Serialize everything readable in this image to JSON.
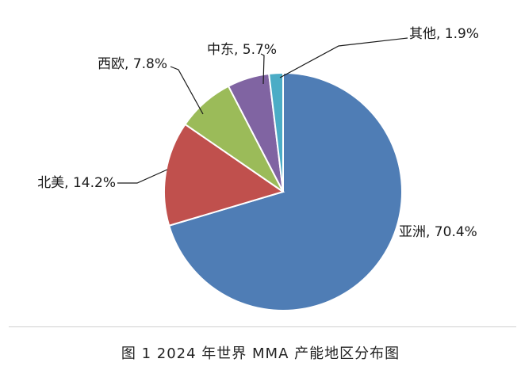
{
  "caption": "图 1  2024 年世界 MMA 产能地区分布图",
  "chart_data": {
    "type": "pie",
    "title": "",
    "slices": [
      {
        "name": "亚洲",
        "value": 70.4,
        "label": "亚洲, 70.4%",
        "color": "#4F7DB5"
      },
      {
        "name": "北美",
        "value": 14.2,
        "label": "北美, 14.2%",
        "color": "#C0504D"
      },
      {
        "name": "西欧",
        "value": 7.8,
        "label": "西欧, 7.8%",
        "color": "#9BBB59"
      },
      {
        "name": "中东",
        "value": 5.7,
        "label": "中东, 5.7%",
        "color": "#8064A2"
      },
      {
        "name": "其他",
        "value": 1.9,
        "label": "其他, 1.9%",
        "color": "#4BACC6"
      }
    ],
    "start": "12 o'clock",
    "direction": "clockwise",
    "legend": "none"
  }
}
